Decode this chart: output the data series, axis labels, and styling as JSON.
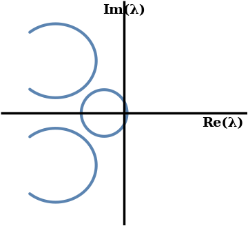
{
  "curve_color": "#5b84b1",
  "curve_linewidth": 3.0,
  "axis_linewidth": 2.5,
  "label_im": "Im(λ)",
  "label_re": "Re(λ)",
  "xlim": [
    -2.8,
    2.8
  ],
  "ylim": [
    -2.8,
    2.8
  ],
  "figsize": [
    3.6,
    3.28
  ],
  "dpi": 100,
  "background": "#ffffff",
  "label_fontsize": 14
}
